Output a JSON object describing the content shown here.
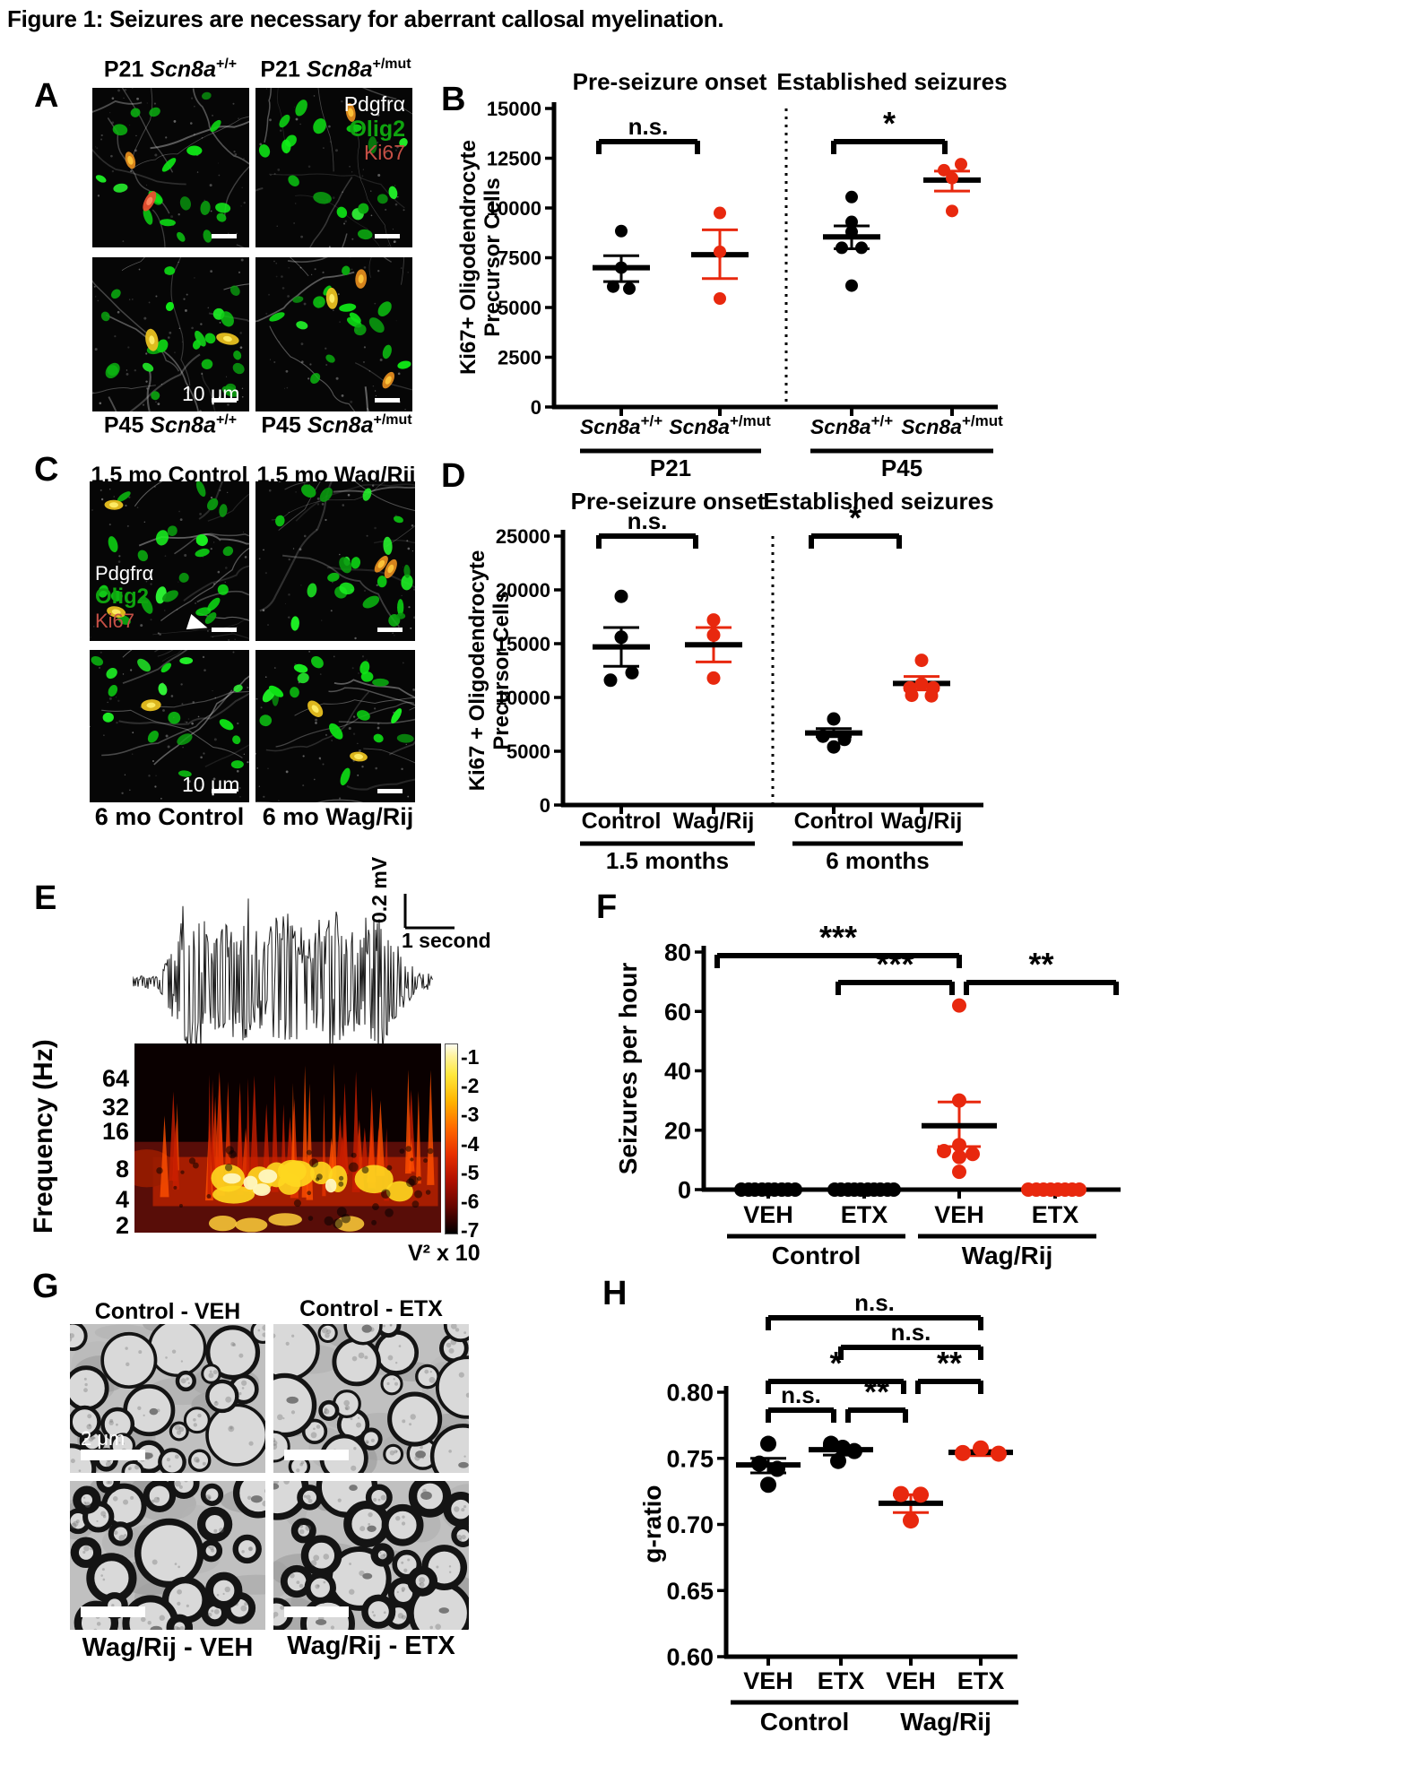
{
  "figure": {
    "title": "Figure 1: Seizures are necessary for aberrant callosal myelination."
  },
  "colors": {
    "black": "#000000",
    "red": "#e8280e",
    "olig2_green": "#0fa30f",
    "ki67_red": "#c44f45",
    "white": "#ffffff"
  },
  "panels": {
    "A": {
      "label": "A",
      "top_titles": [
        {
          "prefix": "P21 ",
          "italic": "Scn8a",
          "sup": "+/+"
        },
        {
          "prefix": "P21 ",
          "italic": "Scn8a",
          "sup": "+/mut"
        }
      ],
      "bottom_titles": [
        {
          "prefix": "P45 ",
          "italic": "Scn8a",
          "sup": "+/+"
        },
        {
          "prefix": "P45 ",
          "italic": "Scn8a",
          "sup": "+/mut"
        }
      ],
      "stains": {
        "pdgfra": "Pdgfrα",
        "olig2": "Olig2",
        "ki67": "Ki67"
      },
      "scale_text": "10 μm"
    },
    "B": {
      "label": "B"
    },
    "C": {
      "label": "C",
      "top_titles": [
        "1.5 mo Control",
        "1.5 mo Wag/Rij"
      ],
      "bottom_titles": [
        "6 mo Control",
        "6 mo Wag/Rij"
      ],
      "stains": {
        "pdgfra": "Pdgfrα",
        "olig2": "Olig2",
        "ki67": "Ki67"
      },
      "scale_text": "10 μm"
    },
    "D": {
      "label": "D"
    },
    "E": {
      "label": "E",
      "scale_v": "0.2 mV",
      "scale_h": "1 second",
      "freq_axis_label": "Frequency (Hz)",
      "freq_ticks": [
        "64",
        "32",
        "16",
        "8",
        "4",
        "2"
      ],
      "colorbar_ticks": [
        "-1",
        "-2",
        "-3",
        "-4",
        "-5",
        "-6",
        "-7"
      ],
      "colorbar_unit": "V² x 10"
    },
    "F": {
      "label": "F"
    },
    "G": {
      "label": "G",
      "top_titles": [
        "Control - VEH",
        "Control - ETX"
      ],
      "bottom_titles": [
        "Wag/Rij - VEH",
        "Wag/Rij - ETX"
      ],
      "scale_text": "2 μm"
    },
    "H": {
      "label": "H"
    }
  },
  "chart_data": [
    {
      "id": "B",
      "type": "scatter",
      "titles": [
        "Pre-seizure onset",
        "Established seizures"
      ],
      "ylabel": [
        "Ki67+ Oligodendrocyte",
        "Precursor Cells"
      ],
      "ylim": [
        0,
        15000
      ],
      "yticks": [
        0,
        2500,
        5000,
        7500,
        10000,
        12500,
        15000
      ],
      "groups": [
        {
          "label": {
            "italic": "Scn8a",
            "sup": "+/+"
          },
          "color": "black",
          "values": [
            8840,
            7000,
            6050,
            5950
          ],
          "dx": [
            0,
            0,
            -9,
            9
          ],
          "mean": 7000,
          "sem_lo": 6300,
          "sem_hi": 7600
        },
        {
          "label": {
            "italic": "Scn8a",
            "sup": "+/mut"
          },
          "color": "red",
          "values": [
            9750,
            7800,
            5450
          ],
          "dx": [
            0,
            0,
            0
          ],
          "mean": 7650,
          "sem_lo": 6450,
          "sem_hi": 8900
        },
        {
          "label": {
            "italic": "Scn8a",
            "sup": "+/+"
          },
          "color": "black",
          "values": [
            10550,
            9300,
            8800,
            8000,
            8000,
            6100
          ],
          "dx": [
            0,
            0,
            0,
            -11,
            11,
            0
          ],
          "mean": 8550,
          "sem_lo": 7950,
          "sem_hi": 9100
        },
        {
          "label": {
            "italic": "Scn8a",
            "sup": "+/mut"
          },
          "color": "red",
          "values": [
            11900,
            12200,
            11500,
            9850
          ],
          "dx": [
            -9,
            10,
            0,
            0
          ],
          "mean": 11400,
          "sem_lo": 10850,
          "sem_hi": 11850
        }
      ],
      "x_groups": [
        {
          "label": "P21",
          "spans": [
            0,
            1
          ]
        },
        {
          "label": "P45",
          "spans": [
            2,
            3
          ]
        }
      ],
      "brackets": [
        {
          "from": 0,
          "to": 1,
          "label": "n.s.",
          "row": 0
        },
        {
          "from": 2,
          "to": 3,
          "label": "*",
          "row": 0
        }
      ]
    },
    {
      "id": "D",
      "type": "scatter",
      "titles": [
        "Pre-seizure onset",
        "Established seizures"
      ],
      "ylabel": [
        "Ki67 + Oligodendrocyte",
        "Precursor Cells"
      ],
      "ylim": [
        0,
        25000
      ],
      "yticks": [
        0,
        5000,
        10000,
        15000,
        20000,
        25000
      ],
      "groups": [
        {
          "label": {
            "text": "Control"
          },
          "color": "black",
          "values": [
            19400,
            15600,
            12300,
            11600
          ],
          "dx": [
            0,
            0,
            12,
            -12
          ],
          "mean": 14700,
          "sem_lo": 12900,
          "sem_hi": 16500
        },
        {
          "label": {
            "text": "Wag/Rij"
          },
          "color": "red",
          "values": [
            17200,
            15800,
            11800
          ],
          "dx": [
            0,
            0,
            0
          ],
          "mean": 14900,
          "sem_lo": 13300,
          "sem_hi": 16500
        },
        {
          "label": {
            "text": "Control"
          },
          "color": "black",
          "values": [
            8000,
            6400,
            6100,
            5400
          ],
          "dx": [
            0,
            -12,
            12,
            0
          ],
          "mean": 6700,
          "sem_lo": 6350,
          "sem_hi": 7100
        },
        {
          "label": {
            "text": "Wag/Rij"
          },
          "color": "red",
          "values": [
            13450,
            11250,
            10900,
            10900,
            10200,
            10150
          ],
          "dx": [
            0,
            0,
            -13,
            13,
            -11,
            11
          ],
          "mean": 11300,
          "sem_lo": 10700,
          "sem_hi": 11950
        }
      ],
      "x_groups": [
        {
          "label": "1.5 months",
          "spans": [
            0,
            1
          ]
        },
        {
          "label": "6 months",
          "spans": [
            2,
            3
          ]
        }
      ],
      "brackets": [
        {
          "from": 0,
          "to": 1,
          "label": "n.s.",
          "row": 0
        },
        {
          "from": 2,
          "to": 3,
          "label": "*",
          "row": 0
        }
      ]
    },
    {
      "id": "F",
      "type": "scatter",
      "titles": [],
      "ylabel": [
        "Seizures per hour"
      ],
      "ylim": [
        0,
        80
      ],
      "yticks": [
        0,
        20,
        40,
        60,
        80
      ],
      "groups": [
        {
          "label": {
            "text": "VEH"
          },
          "color": "black",
          "values": [
            0,
            0,
            0,
            0,
            0,
            0,
            0,
            0,
            0
          ],
          "dx": [
            -30,
            -22,
            -15,
            -7,
            0,
            7,
            15,
            22,
            30
          ],
          "mean": null
        },
        {
          "label": {
            "text": "ETX"
          },
          "color": "black",
          "values": [
            0,
            0,
            0,
            0,
            0,
            0,
            0,
            0,
            0,
            0
          ],
          "dx": [
            -33,
            -26,
            -18,
            -11,
            -4,
            4,
            11,
            18,
            26,
            33
          ],
          "mean": null
        },
        {
          "label": {
            "text": "VEH"
          },
          "color": "red",
          "values": [
            62,
            30,
            15,
            13,
            12,
            11,
            6
          ],
          "dx": [
            0,
            0,
            0,
            -17,
            15,
            0,
            0
          ],
          "mean": 21.5,
          "sem_lo": 14.5,
          "sem_hi": 29.5
        },
        {
          "label": {
            "text": "ETX"
          },
          "color": "red",
          "values": [
            0,
            0,
            0,
            0,
            0,
            0,
            0,
            0
          ],
          "dx": [
            -30,
            -21,
            -13,
            -5,
            3,
            11,
            19,
            27
          ],
          "mean": null
        }
      ],
      "x_groups": [
        {
          "label": "Control",
          "spans": [
            0,
            1
          ]
        },
        {
          "label": "Wag/Rij",
          "spans": [
            2,
            3
          ]
        }
      ],
      "brackets": [
        {
          "from": 0,
          "to": 2,
          "label": "***",
          "row": 0
        },
        {
          "from": 1,
          "to": 2,
          "label": "***",
          "row": 1
        },
        {
          "from": 2,
          "to": 3,
          "label": "**",
          "row": 1
        }
      ]
    },
    {
      "id": "H",
      "type": "scatter",
      "titles": [],
      "ylabel": [
        "g-ratio"
      ],
      "ylim": [
        0.6,
        0.8
      ],
      "yticks": [
        0.6,
        0.65,
        0.7,
        0.75,
        0.8
      ],
      "ytick_decimals": 2,
      "groups": [
        {
          "label": {
            "text": "VEH"
          },
          "color": "black",
          "values": [
            0.761,
            0.746,
            0.742,
            0.73
          ],
          "dx": [
            0,
            -10,
            10,
            0
          ],
          "mean": 0.745,
          "sem_lo": 0.739,
          "sem_hi": 0.75
        },
        {
          "label": {
            "text": "ETX"
          },
          "color": "black",
          "values": [
            0.761,
            0.758,
            0.7555,
            0.748
          ],
          "dx": [
            -11,
            2,
            15,
            -3
          ],
          "mean": 0.7565,
          "sem_lo": 0.7525,
          "sem_hi": 0.7595
        },
        {
          "label": {
            "text": "VEH"
          },
          "color": "red",
          "values": [
            0.723,
            0.7225,
            0.703
          ],
          "dx": [
            -11,
            11,
            0
          ],
          "mean": 0.716,
          "sem_lo": 0.709,
          "sem_hi": 0.7225
        },
        {
          "label": {
            "text": "ETX"
          },
          "color": "red",
          "values": [
            0.754,
            0.7575,
            0.7535
          ],
          "dx": [
            -20,
            0,
            20
          ],
          "mean": 0.7545,
          "sem_lo": 0.752,
          "sem_hi": 0.756
        }
      ],
      "x_groups": [
        {
          "label": "Control",
          "spans": [
            0,
            1
          ]
        },
        {
          "label": "Wag/Rij",
          "spans": [
            2,
            3
          ]
        }
      ],
      "brackets": [
        {
          "from": 0,
          "to": 3,
          "label": "n.s.",
          "row": 0
        },
        {
          "from": 1,
          "to": 3,
          "label": "n.s.",
          "row": 1
        },
        {
          "from": 0,
          "to": 2,
          "label": "*",
          "row": 2
        },
        {
          "from": 2,
          "to": 3,
          "label": "**",
          "row": 2
        },
        {
          "from": 0,
          "to": 1,
          "label": "n.s.",
          "row": 3
        },
        {
          "from": 1,
          "to": 2,
          "label": "**",
          "row": 3
        }
      ]
    }
  ]
}
